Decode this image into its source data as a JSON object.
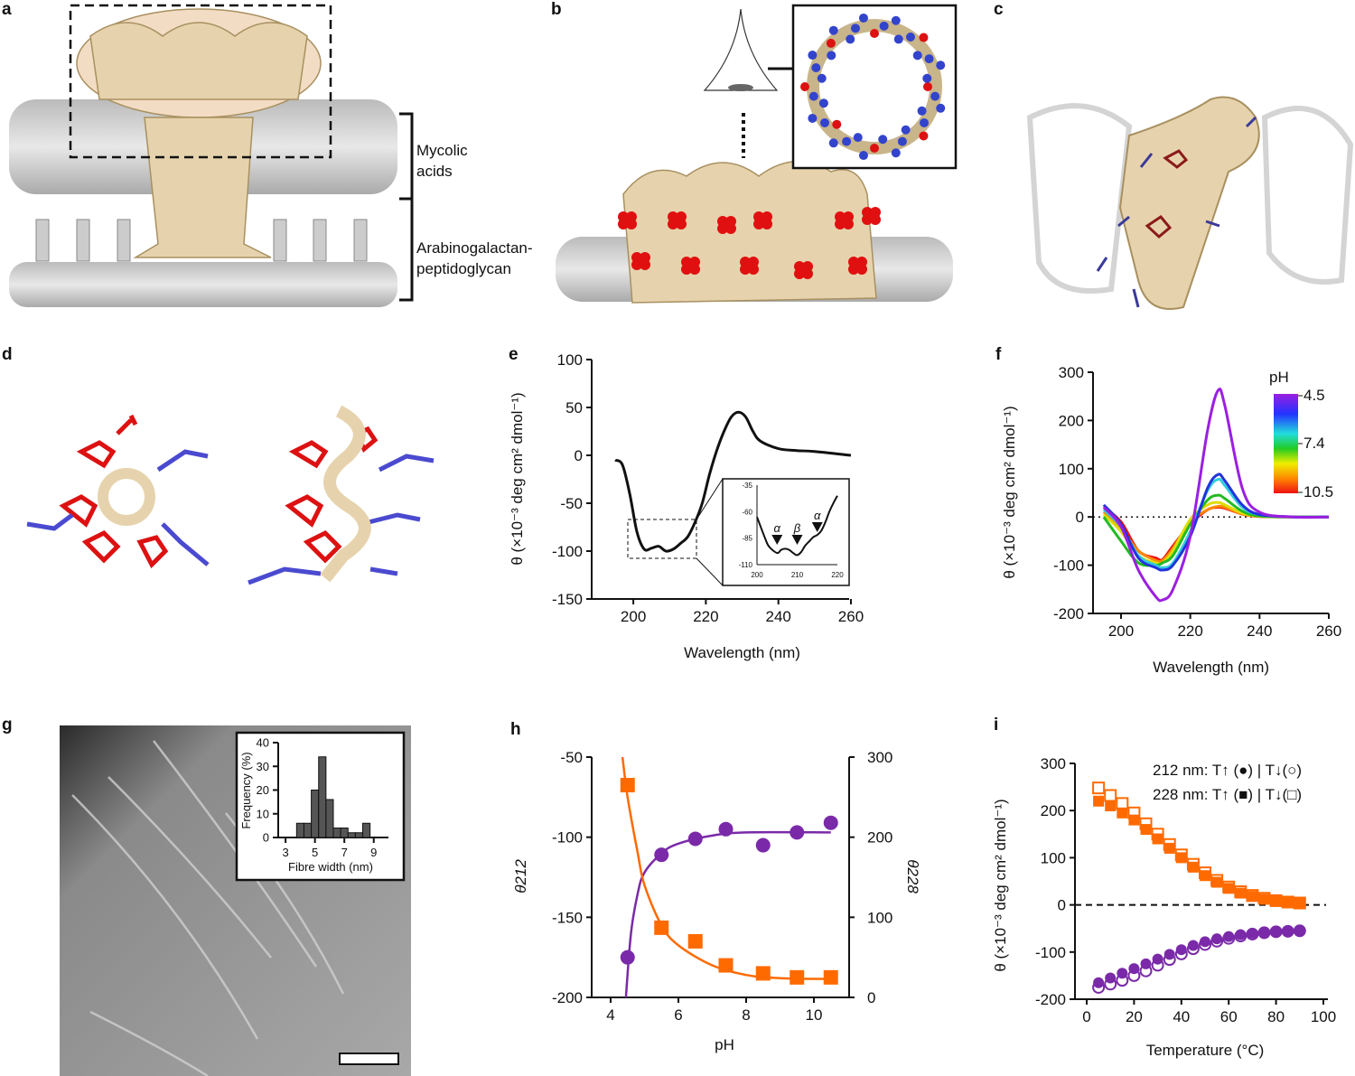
{
  "panels": {
    "a": {
      "label": "a",
      "mycolic": [
        "Mycolic",
        "acids"
      ],
      "arabino": [
        "Arabinogalactan-",
        "peptidoglycan"
      ]
    },
    "b": {
      "label": "b"
    },
    "c": {
      "label": "c"
    },
    "d": {
      "label": "d"
    },
    "g": {
      "label": "g"
    }
  },
  "colors": {
    "protein": "#e6d3ad",
    "red_residue": "#dd1111",
    "blue_residue": "#4a4ad0",
    "purple": "#7a2aa8",
    "orange": "#ff6a00"
  },
  "chart_data": [
    {
      "id": "e",
      "panel_label": "e",
      "type": "line",
      "xlabel": "Wavelength (nm)",
      "ylabel": "θ (×10⁻³ deg cm² dmol⁻¹)",
      "xlim": [
        193,
        262
      ],
      "ylim": [
        -150,
        100
      ],
      "xticks": [
        200,
        220,
        240,
        260
      ],
      "yticks": [
        100,
        50,
        0,
        -50,
        -100,
        -150
      ],
      "series": [
        {
          "color": "#111111",
          "x": [
            195,
            197,
            199,
            201,
            203,
            205,
            207,
            209,
            211,
            213,
            215,
            217,
            219,
            221,
            223,
            225,
            227,
            229,
            231,
            233,
            235,
            240,
            245,
            250,
            260
          ],
          "y": [
            -5,
            -10,
            -40,
            -80,
            -98,
            -97,
            -95,
            -100,
            -98,
            -92,
            -85,
            -70,
            -50,
            -20,
            5,
            25,
            40,
            45,
            40,
            25,
            15,
            7,
            5,
            4,
            0
          ]
        }
      ],
      "inset": {
        "xlim": [
          200,
          220
        ],
        "ylim": [
          -110,
          -35
        ],
        "xticks": [
          200,
          210,
          220
        ],
        "yticks": [
          -35,
          -60,
          -85,
          -110
        ],
        "x": [
          200,
          202,
          203,
          205,
          206,
          207,
          208,
          209,
          210,
          211,
          212,
          213,
          214,
          215,
          216,
          217,
          218,
          219,
          220
        ],
        "y": [
          -65,
          -85,
          -93,
          -99,
          -96,
          -95,
          -96,
          -99,
          -101,
          -98,
          -92,
          -88,
          -84,
          -82,
          -78,
          -70,
          -60,
          -52,
          -45
        ],
        "annotations": [
          {
            "text": "α",
            "x": 205
          },
          {
            "text": "β",
            "x": 210
          },
          {
            "text": "α",
            "x": 215
          }
        ]
      }
    },
    {
      "id": "f",
      "panel_label": "f",
      "type": "line",
      "xlabel": "Wavelength (nm)",
      "ylabel": "θ (×10⁻³ deg cm² dmol⁻¹)",
      "xlim": [
        193,
        262
      ],
      "ylim": [
        -200,
        300
      ],
      "xticks": [
        200,
        220,
        240,
        260
      ],
      "yticks": [
        300,
        200,
        100,
        0,
        -100,
        -200
      ],
      "zero_line": "dotted",
      "colorbar": {
        "title": "pH",
        "ticks": [
          "4.5",
          "7.4",
          "10.5"
        ]
      },
      "x": [
        195,
        200,
        205,
        210,
        212,
        215,
        220,
        225,
        228,
        230,
        235,
        240,
        250,
        260
      ],
      "series": [
        {
          "pH": 4.5,
          "color": "#9b1fe0",
          "y": [
            20,
            -20,
            -110,
            -165,
            -172,
            -150,
            -40,
            180,
            262,
            230,
            60,
            10,
            0,
            0
          ]
        },
        {
          "pH": 5.5,
          "color": "#2233dd",
          "y": [
            25,
            -15,
            -85,
            -105,
            -110,
            -100,
            -40,
            60,
            88,
            75,
            25,
            5,
            0,
            0
          ]
        },
        {
          "pH": 6.5,
          "color": "#33ccdd",
          "y": [
            15,
            -20,
            -80,
            -100,
            -105,
            -95,
            -30,
            55,
            78,
            65,
            20,
            5,
            0,
            0
          ]
        },
        {
          "pH": 7.4,
          "color": "#22bb22",
          "y": [
            0,
            -50,
            -95,
            -100,
            -95,
            -80,
            -15,
            35,
            45,
            38,
            12,
            2,
            0,
            0
          ]
        },
        {
          "pH": 8.5,
          "color": "#dddd00",
          "y": [
            5,
            -30,
            -80,
            -95,
            -95,
            -70,
            -5,
            25,
            30,
            25,
            8,
            2,
            0,
            0
          ]
        },
        {
          "pH": 9.5,
          "color": "#ff8800",
          "y": [
            10,
            -25,
            -70,
            -90,
            -90,
            -65,
            -10,
            15,
            22,
            20,
            6,
            1,
            0,
            0
          ]
        },
        {
          "pH": 10.5,
          "color": "#ee1111",
          "y": [
            20,
            -10,
            -70,
            -85,
            -88,
            -60,
            -15,
            15,
            20,
            18,
            6,
            1,
            0,
            0
          ]
        }
      ]
    },
    {
      "id": "g_inset",
      "type": "bar",
      "xlabel": "Fibre width (nm)",
      "ylabel": "Frequency (%)",
      "xlim": [
        2.5,
        10
      ],
      "ylim": [
        0,
        40
      ],
      "xticks": [
        3,
        5,
        7,
        9
      ],
      "yticks": [
        0,
        10,
        20,
        30,
        40
      ],
      "bin_centers": [
        4,
        4.5,
        5,
        5.5,
        6,
        6.5,
        7,
        7.5,
        8,
        8.5
      ],
      "values": [
        6,
        6,
        20,
        34,
        16,
        4,
        4,
        2,
        2,
        6
      ]
    },
    {
      "id": "h",
      "panel_label": "h",
      "type": "scatter",
      "xlabel": "pH",
      "ylabel_left": "θ212",
      "ylabel_right": "θ228",
      "xlim": [
        3.9,
        11.1
      ],
      "ylim_left": [
        -200,
        -50
      ],
      "ylim_right": [
        0,
        300
      ],
      "xticks": [
        4,
        6,
        8,
        10
      ],
      "yticks_left": [
        -50,
        -100,
        -150,
        -200
      ],
      "yticks_right": [
        300,
        200,
        100,
        0
      ],
      "x": [
        4.5,
        5.5,
        6.5,
        7.4,
        8.5,
        9.5,
        10.5
      ],
      "theta212": [
        -175,
        -111,
        -101,
        -95,
        -105,
        -97,
        -91
      ],
      "theta228": [
        265,
        87,
        70,
        40,
        30,
        25,
        25
      ],
      "fit212": {
        "x": [
          4.45,
          4.6,
          4.8,
          5,
          5.5,
          6,
          7,
          8,
          10.5
        ],
        "y": [
          -200,
          -160,
          -135,
          -122,
          -110,
          -104,
          -99,
          -97,
          -97
        ]
      },
      "fit228": {
        "x": [
          4.35,
          4.5,
          4.8,
          5,
          5.5,
          6,
          7,
          8,
          9,
          10.5
        ],
        "y": [
          300,
          250,
          180,
          140,
          90,
          65,
          40,
          28,
          24,
          23
        ]
      }
    },
    {
      "id": "i",
      "panel_label": "i",
      "type": "scatter",
      "xlabel": "Temperature (°C)",
      "ylabel": "θ (×10⁻³ deg cm² dmol⁻¹)",
      "xlim": [
        0,
        100
      ],
      "ylim": [
        -200,
        300
      ],
      "xticks": [
        0,
        20,
        40,
        60,
        80,
        100
      ],
      "yticks": [
        300,
        200,
        100,
        0,
        -100,
        -200
      ],
      "zero_line": "dashed",
      "legend": [
        "212 nm: T↑ (●) | T↓(○)",
        "228 nm: T↑ (■) | T↓(□)"
      ],
      "x": [
        5,
        10,
        15,
        20,
        25,
        30,
        35,
        40,
        45,
        50,
        55,
        60,
        65,
        70,
        75,
        80,
        85,
        90
      ],
      "nm212_up": [
        -165,
        -155,
        -145,
        -135,
        -125,
        -115,
        -105,
        -95,
        -86,
        -78,
        -72,
        -67,
        -63,
        -60,
        -58,
        -56,
        -55,
        -54
      ],
      "nm212_down": [
        -175,
        -168,
        -160,
        -150,
        -140,
        -128,
        -116,
        -104,
        -93,
        -84,
        -77,
        -71,
        -66,
        -62,
        -59,
        -57,
        -56,
        -55
      ],
      "nm228_up": [
        220,
        210,
        195,
        180,
        160,
        140,
        120,
        100,
        80,
        62,
        48,
        35,
        25,
        18,
        12,
        8,
        5,
        3
      ],
      "nm228_down": [
        248,
        232,
        215,
        195,
        172,
        150,
        128,
        106,
        86,
        68,
        52,
        38,
        28,
        20,
        14,
        9,
        6,
        4
      ]
    }
  ]
}
